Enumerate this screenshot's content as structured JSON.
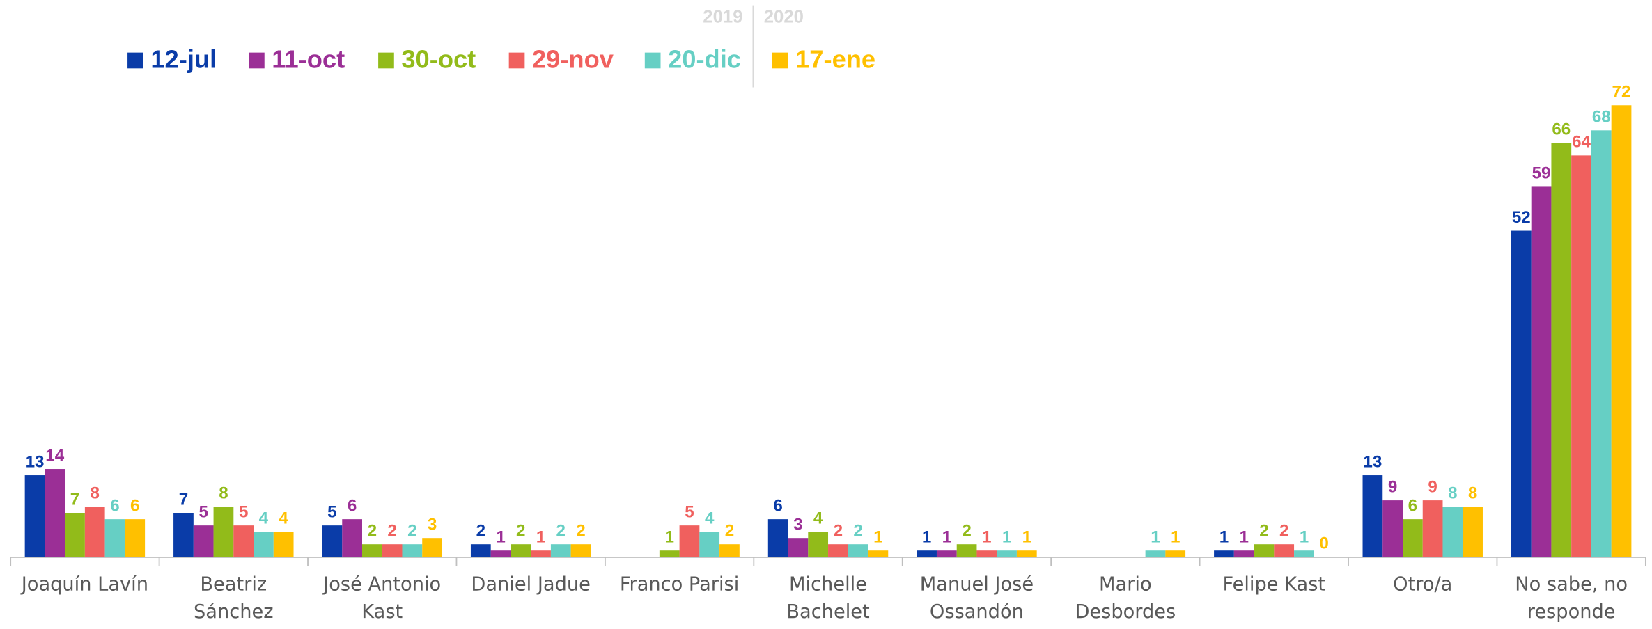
{
  "chart_data": {
    "type": "bar",
    "header_years": [
      "2019",
      "2020"
    ],
    "categories": [
      "Joaquín Lavín",
      "Beatriz Sánchez",
      "José Antonio Kast",
      "Daniel Jadue",
      "Franco Parisi",
      "Michelle Bachelet",
      "Manuel José Ossandón",
      "Mario Desbordes",
      "Felipe Kast",
      "Otro/a",
      "No sabe, no responde"
    ],
    "series": [
      {
        "name": "12-jul",
        "color": "#0a3ca8",
        "values": [
          13,
          7,
          5,
          2,
          null,
          6,
          1,
          null,
          1,
          13,
          52
        ]
      },
      {
        "name": "11-oct",
        "color": "#9b2f96",
        "values": [
          14,
          5,
          6,
          1,
          null,
          3,
          1,
          null,
          1,
          9,
          59
        ]
      },
      {
        "name": "30-oct",
        "color": "#92bb1a",
        "values": [
          7,
          8,
          2,
          2,
          1,
          4,
          2,
          null,
          2,
          6,
          66
        ]
      },
      {
        "name": "29-nov",
        "color": "#f0605e",
        "values": [
          8,
          5,
          2,
          1,
          5,
          2,
          1,
          null,
          2,
          9,
          64
        ]
      },
      {
        "name": "20-dic",
        "color": "#66cfc4",
        "values": [
          6,
          4,
          2,
          2,
          4,
          2,
          1,
          1,
          1,
          8,
          68
        ]
      },
      {
        "name": "17-ene",
        "color": "#ffc000",
        "values": [
          6,
          4,
          3,
          2,
          2,
          1,
          1,
          1,
          0,
          8,
          72
        ]
      }
    ]
  }
}
